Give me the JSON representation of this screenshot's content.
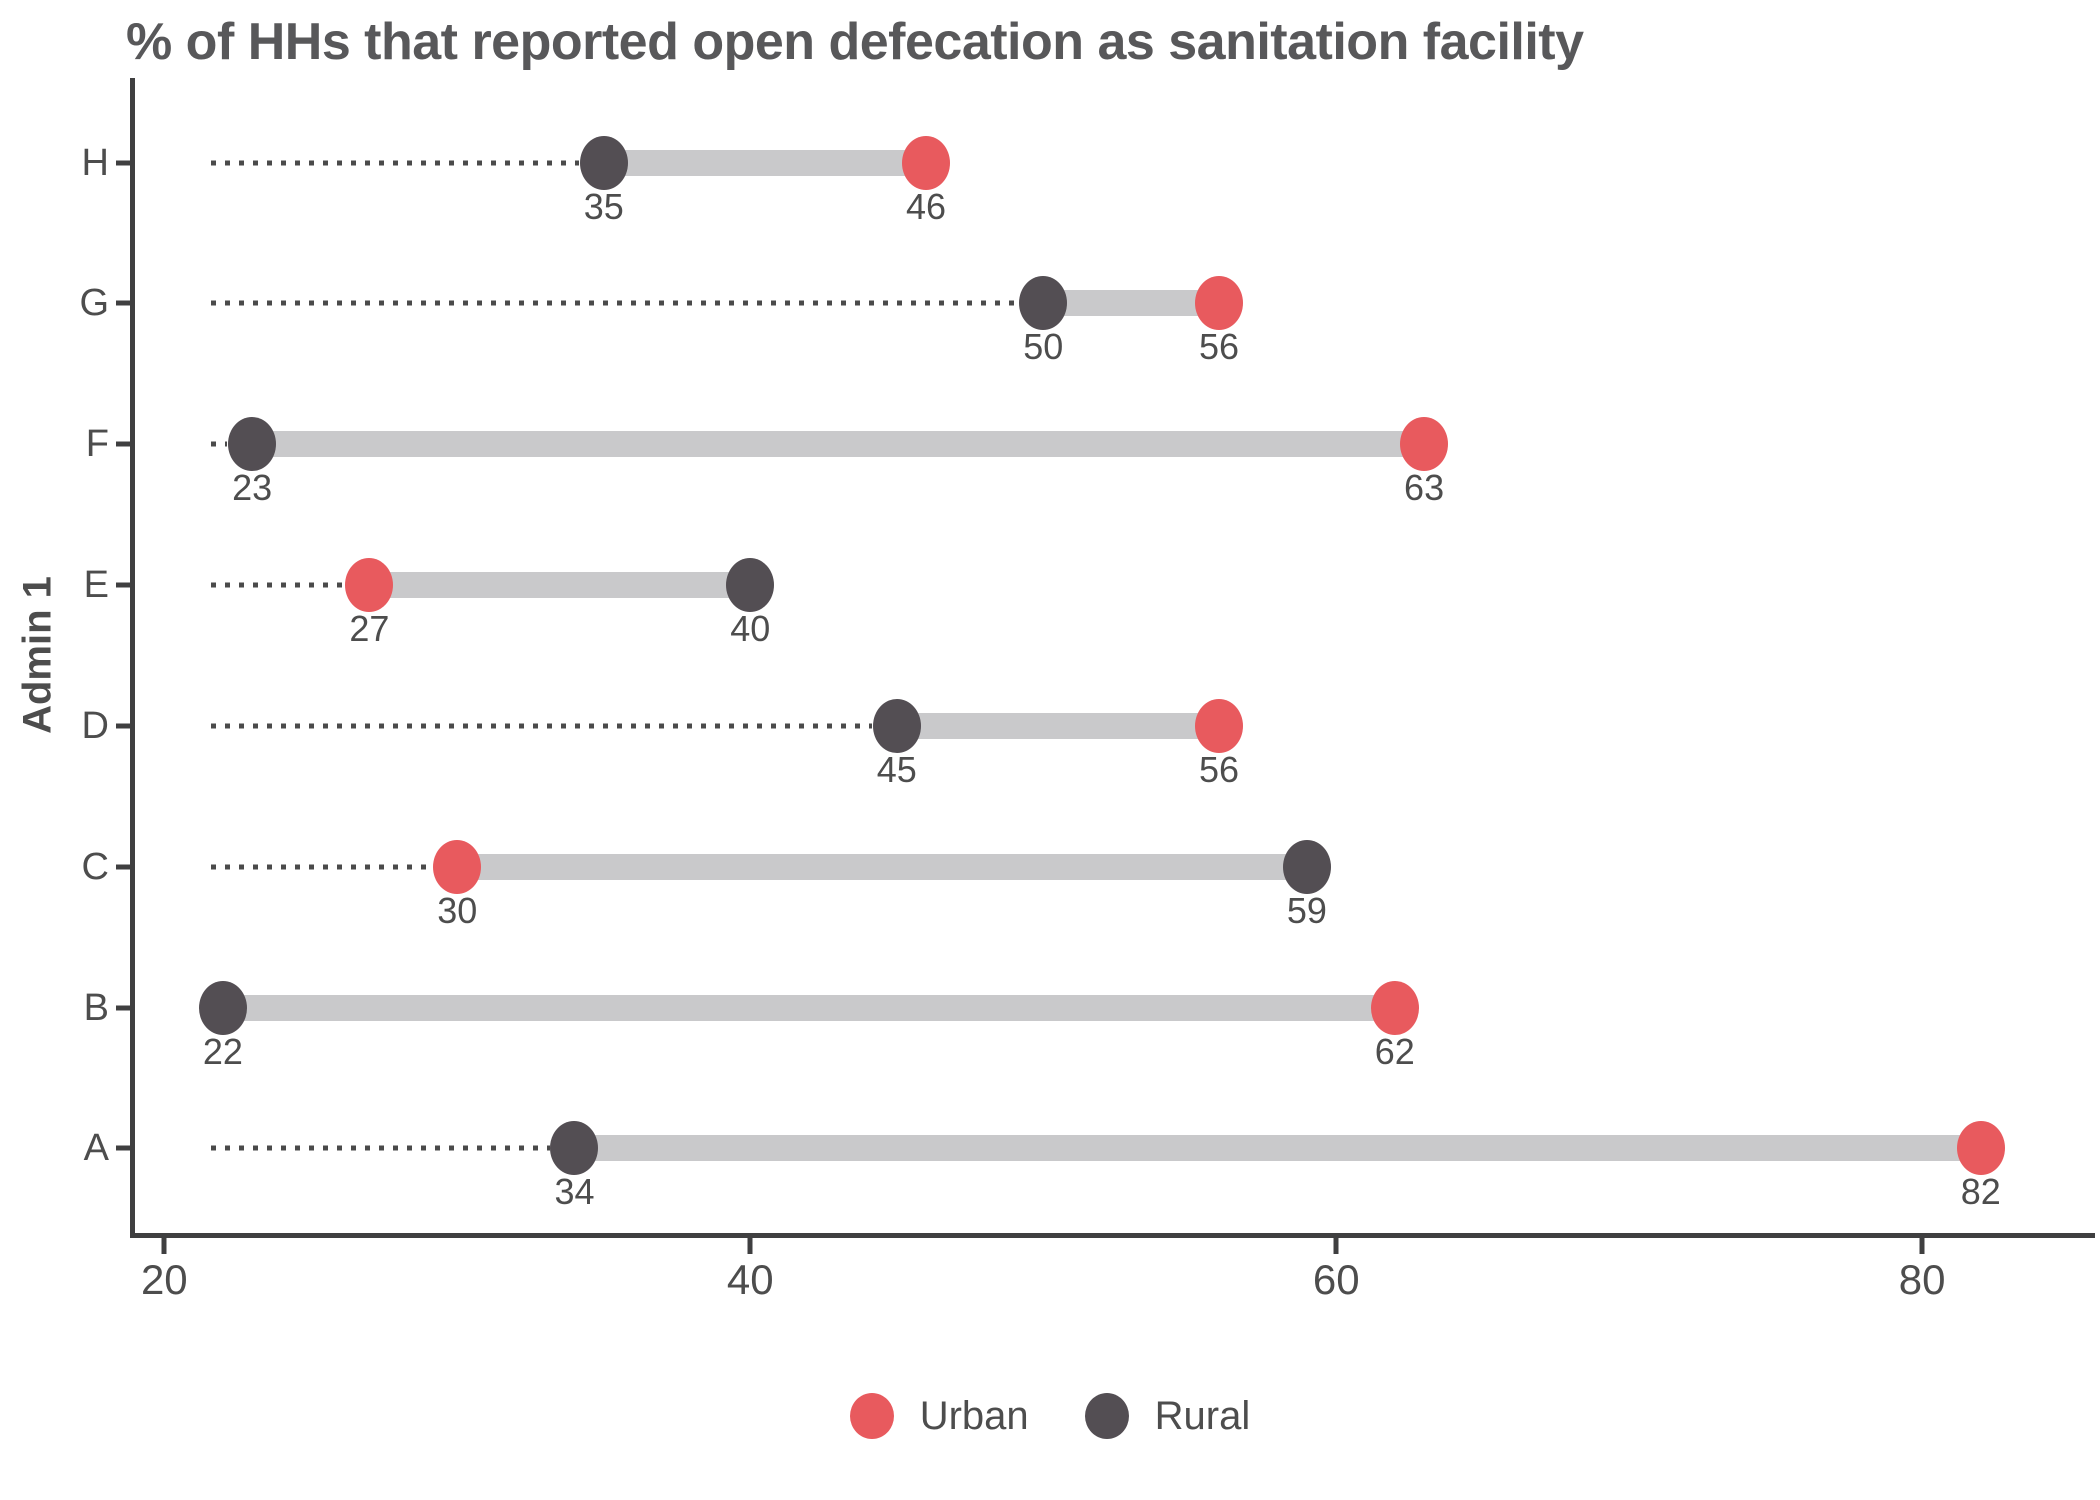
{
  "title": "% of HHs that reported open defecation as sanitation facility",
  "chart_data": {
    "type": "dumbbell",
    "title": "% of HHs that reported open defecation as sanitation facility",
    "xlabel": "",
    "ylabel": "Admin 1",
    "categories": [
      "H",
      "G",
      "F",
      "E",
      "D",
      "C",
      "B",
      "A"
    ],
    "series": [
      {
        "name": "Urban",
        "color": "#E85A5E",
        "values": [
          46,
          56,
          63,
          27,
          56,
          30,
          62,
          82
        ]
      },
      {
        "name": "Rural",
        "color": "#534E53",
        "values": [
          35,
          50,
          23,
          40,
          45,
          59,
          22,
          34
        ]
      }
    ],
    "x_ticks": [
      "20",
      "40",
      "60",
      "80"
    ],
    "x_range": [
      19.0,
      85.9
    ],
    "dotted_baseline_start": 21.6,
    "grid": "off",
    "legend_position": "bottom"
  },
  "colors": {
    "urban": "#E85A5E",
    "rural": "#534E53",
    "band": "#C9C9CB",
    "dotted_line": "#4A4A4A",
    "axis": "#3F3F40",
    "text": "#4D4D4D",
    "title": "#58585A"
  },
  "legend": {
    "items": [
      {
        "label": "Urban",
        "color": "#E85A5E"
      },
      {
        "label": "Rural",
        "color": "#534E53"
      }
    ]
  }
}
